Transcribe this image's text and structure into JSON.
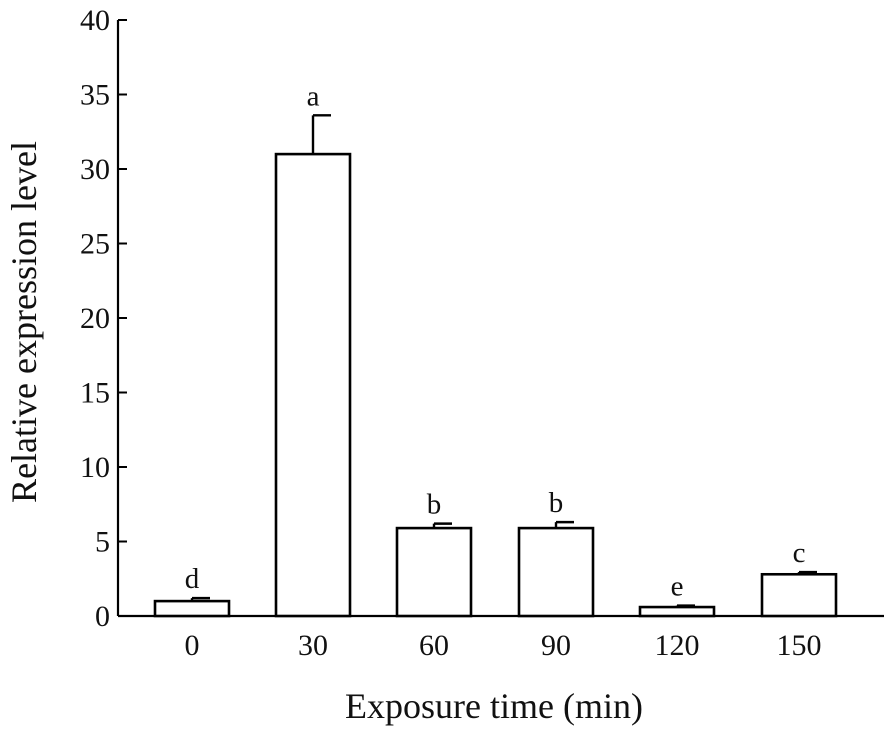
{
  "chart_data": {
    "type": "bar",
    "categories": [
      "0",
      "30",
      "60",
      "90",
      "120",
      "150"
    ],
    "values": [
      1.0,
      31.0,
      5.9,
      5.9,
      0.6,
      2.8
    ],
    "errors": [
      0.2,
      2.6,
      0.3,
      0.4,
      0.1,
      0.15
    ],
    "significance": [
      "d",
      "a",
      "b",
      "b",
      "e",
      "c"
    ],
    "xlabel": "Exposure time (min)",
    "ylabel": "Relative expression level",
    "ylim": [
      0,
      40
    ],
    "yticks": [
      "0",
      "5",
      "10",
      "15",
      "20",
      "25",
      "30",
      "35",
      "40"
    ],
    "grid": false,
    "bar_fill": "#ffffff",
    "bar_stroke": "#000000"
  }
}
